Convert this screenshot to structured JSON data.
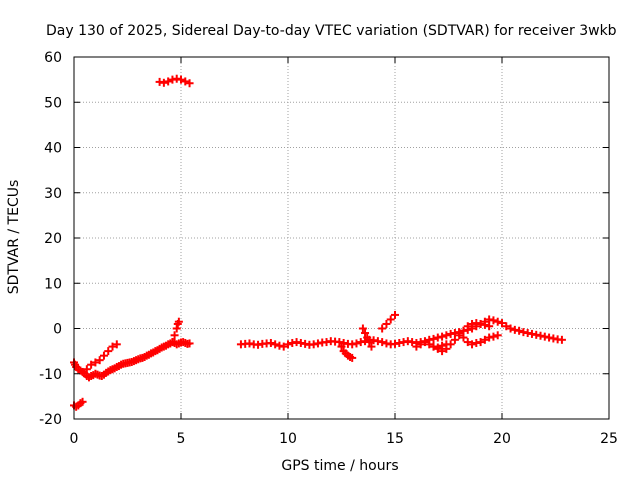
{
  "chart_data": {
    "type": "scatter",
    "title": "Day 130 of 2025, Sidereal Day-to-day VTEC variation (SDTVAR) for receiver 3wkb",
    "xlabel": "GPS time / hours",
    "ylabel": "SDTVAR / TECUs",
    "xlim": [
      0,
      25
    ],
    "ylim": [
      -20,
      60
    ],
    "xticks": [
      0,
      5,
      10,
      15,
      20,
      25
    ],
    "yticks": [
      -20,
      -10,
      0,
      10,
      20,
      30,
      40,
      50,
      60
    ],
    "grid": true,
    "legend": "none",
    "marker_color": "#ff0000",
    "series": [
      {
        "name": "SDTVAR",
        "x": [
          0.0,
          0.05,
          0.1,
          0.2,
          0.3,
          0.4,
          0.5,
          0.6,
          0.7,
          0.8,
          0.9,
          1.0,
          1.1,
          1.2,
          1.3,
          1.4,
          1.5,
          1.6,
          1.7,
          1.8,
          1.9,
          2.0,
          2.1,
          2.2,
          2.3,
          2.4,
          2.5,
          2.6,
          2.7,
          2.8,
          2.9,
          3.0,
          3.1,
          3.2,
          3.3,
          3.4,
          3.5,
          3.6,
          3.7,
          3.8,
          3.9,
          4.0,
          4.1,
          4.2,
          4.3,
          4.4,
          4.5,
          4.6,
          4.7,
          4.8,
          4.9,
          5.0,
          5.1,
          5.2,
          5.3,
          5.4,
          0.6,
          0.8,
          1.0,
          1.2,
          1.4,
          1.6,
          1.8,
          2.0,
          4.6,
          4.7,
          4.8,
          4.85,
          4.9,
          0.0,
          0.1,
          0.2,
          0.3,
          0.4,
          4.0,
          4.2,
          4.4,
          4.6,
          4.8,
          5.0,
          5.2,
          5.4,
          7.8,
          8.0,
          8.2,
          8.4,
          8.6,
          8.8,
          9.0,
          9.2,
          9.4,
          9.6,
          9.8,
          10.0,
          10.2,
          10.4,
          10.6,
          10.8,
          11.0,
          11.2,
          11.4,
          11.6,
          11.8,
          12.0,
          12.2,
          12.4,
          12.6,
          12.8,
          13.0,
          13.2,
          13.4,
          13.6,
          13.8,
          14.0,
          14.2,
          14.4,
          14.6,
          14.8,
          15.0,
          15.2,
          15.4,
          15.6,
          15.8,
          16.0,
          16.2,
          16.4,
          16.6,
          16.8,
          17.0,
          17.2,
          17.4,
          17.6,
          17.8,
          18.0,
          18.2,
          18.4,
          18.6,
          18.8,
          19.0,
          19.2,
          19.4,
          19.6,
          19.8,
          20.0,
          20.2,
          20.4,
          20.6,
          20.8,
          21.0,
          21.2,
          21.4,
          21.6,
          21.8,
          22.0,
          22.2,
          22.4,
          22.6,
          22.8,
          12.5,
          12.6,
          12.7,
          12.8,
          12.9,
          13.0,
          13.5,
          13.6,
          13.7,
          13.8,
          13.9,
          14.4,
          14.6,
          14.8,
          15.0,
          16.8,
          17.0,
          17.2,
          17.4,
          18.0,
          18.2,
          18.4,
          18.6,
          18.8,
          19.0,
          19.2,
          19.4,
          19.6,
          19.8,
          17.6,
          17.8,
          18.0,
          18.2,
          18.4,
          18.6,
          18.8,
          19.0,
          19.2,
          19.4,
          16.0,
          16.2,
          16.4,
          16.6,
          16.8,
          17.0,
          17.2,
          17.4
        ],
        "y": [
          -7.5,
          -8.0,
          -8.5,
          -9.0,
          -9.3,
          -9.6,
          -10.0,
          -10.5,
          -10.8,
          -10.5,
          -10.3,
          -10.0,
          -10.2,
          -10.4,
          -10.5,
          -10.2,
          -9.8,
          -9.5,
          -9.2,
          -9.0,
          -8.8,
          -8.5,
          -8.3,
          -8.0,
          -7.8,
          -7.7,
          -7.6,
          -7.5,
          -7.4,
          -7.2,
          -7.0,
          -6.8,
          -6.6,
          -6.5,
          -6.3,
          -6.0,
          -5.8,
          -5.5,
          -5.3,
          -5.0,
          -4.8,
          -4.5,
          -4.2,
          -4.0,
          -3.8,
          -3.5,
          -3.3,
          -3.0,
          -3.2,
          -3.5,
          -3.3,
          -3.1,
          -3.0,
          -3.2,
          -3.4,
          -3.3,
          -9.0,
          -8.0,
          -7.5,
          -7.0,
          -6.0,
          -5.0,
          -4.0,
          -3.5,
          -3.0,
          -1.5,
          0.0,
          1.0,
          1.5,
          -17.0,
          -17.3,
          -17.0,
          -16.5,
          -16.2,
          54.5,
          54.3,
          54.6,
          55.0,
          55.2,
          55.0,
          54.6,
          54.2,
          -3.5,
          -3.4,
          -3.3,
          -3.5,
          -3.6,
          -3.4,
          -3.3,
          -3.2,
          -3.5,
          -3.8,
          -4.0,
          -3.5,
          -3.2,
          -3.0,
          -3.2,
          -3.4,
          -3.6,
          -3.5,
          -3.3,
          -3.1,
          -3.0,
          -2.8,
          -2.9,
          -3.0,
          -3.2,
          -3.4,
          -3.5,
          -3.3,
          -3.0,
          -2.8,
          -2.5,
          -2.6,
          -2.8,
          -3.0,
          -3.3,
          -3.5,
          -3.4,
          -3.2,
          -3.0,
          -2.8,
          -3.0,
          -3.2,
          -3.0,
          -2.8,
          -2.5,
          -2.3,
          -2.0,
          -1.8,
          -1.5,
          -1.2,
          -1.0,
          -0.8,
          -0.5,
          -0.3,
          0.0,
          0.5,
          1.0,
          1.5,
          2.0,
          1.8,
          1.5,
          1.2,
          0.5,
          0.0,
          -0.3,
          -0.5,
          -0.8,
          -1.0,
          -1.2,
          -1.4,
          -1.6,
          -1.8,
          -2.0,
          -2.2,
          -2.4,
          -2.5,
          -4.0,
          -5.0,
          -5.5,
          -6.0,
          -6.3,
          -6.5,
          0.0,
          -1.0,
          -2.0,
          -3.0,
          -4.0,
          0.0,
          1.0,
          2.0,
          3.0,
          -4.0,
          -4.5,
          -5.0,
          -4.5,
          -1.0,
          -2.0,
          -3.0,
          -3.5,
          -3.2,
          -3.0,
          -2.5,
          -2.0,
          -1.8,
          -1.5,
          -3.5,
          -2.5,
          -1.5,
          -0.5,
          0.5,
          1.0,
          1.2,
          1.0,
          0.8,
          0.5,
          -4.0,
          -3.5,
          -3.0,
          -3.5,
          -4.0,
          -4.2,
          -3.8,
          -3.5
        ]
      }
    ]
  }
}
